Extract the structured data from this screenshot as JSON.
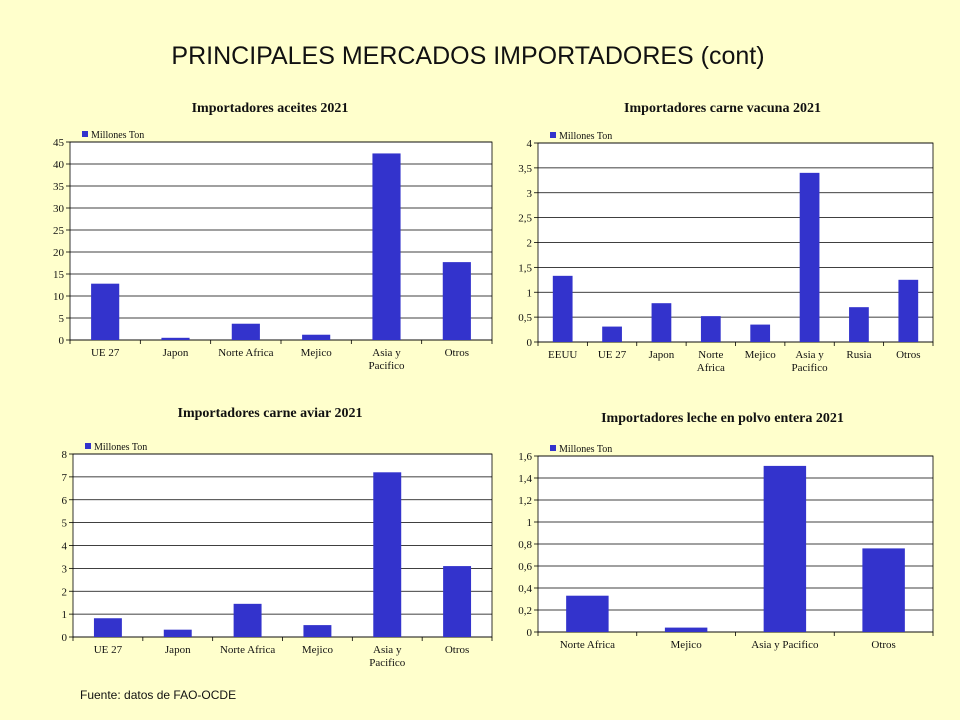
{
  "page": {
    "title": "PRINCIPALES MERCADOS IMPORTADORES (cont)",
    "source": "Fuente: datos de  FAO-OCDE"
  },
  "colors": {
    "bar": "#3333cc",
    "background": "#ffffcc",
    "plot": "#ffffff"
  },
  "chart_data": [
    {
      "type": "bar",
      "title": "Importadores aceites 2021",
      "categories": [
        [
          "UE 27"
        ],
        [
          "Japon"
        ],
        [
          "Norte Africa"
        ],
        [
          "Mejico"
        ],
        [
          "Asia y",
          "Pacifico"
        ],
        [
          "Otros"
        ]
      ],
      "series": [
        {
          "name": "Millones Ton",
          "values": [
            12.8,
            0.5,
            3.7,
            1.2,
            42.4,
            17.7
          ]
        }
      ],
      "ylim": [
        0,
        45
      ],
      "yticks": [
        0,
        5,
        10,
        15,
        20,
        25,
        30,
        35,
        40,
        45
      ],
      "ytick_labels": [
        "0",
        "5",
        "10",
        "15",
        "20",
        "25",
        "30",
        "35",
        "40",
        "45"
      ],
      "grid": true,
      "legend": "top-left"
    },
    {
      "type": "bar",
      "title": "Importadores carne vacuna 2021",
      "categories": [
        [
          "EEUU"
        ],
        [
          "UE 27"
        ],
        [
          "Japon"
        ],
        [
          "Norte",
          "Africa"
        ],
        [
          "Mejico"
        ],
        [
          "Asia y",
          "Pacifico"
        ],
        [
          "Rusia"
        ],
        [
          "Otros"
        ]
      ],
      "series": [
        {
          "name": "Millones Ton",
          "values": [
            1.33,
            0.31,
            0.78,
            0.52,
            0.35,
            3.4,
            0.7,
            1.25
          ]
        }
      ],
      "ylim": [
        0,
        4
      ],
      "yticks": [
        0,
        0.5,
        1,
        1.5,
        2,
        2.5,
        3,
        3.5,
        4
      ],
      "ytick_labels": [
        "0",
        "0,5",
        "1",
        "1,5",
        "2",
        "2,5",
        "3",
        "3,5",
        "4"
      ],
      "grid": true,
      "legend": "top-left"
    },
    {
      "type": "bar",
      "title": "Importadores carne aviar 2021",
      "categories": [
        [
          "UE 27"
        ],
        [
          "Japon"
        ],
        [
          "Norte Africa"
        ],
        [
          "Mejico"
        ],
        [
          "Asia y",
          "Pacifico"
        ],
        [
          "Otros"
        ]
      ],
      "series": [
        {
          "name": "Millones Ton",
          "values": [
            0.82,
            0.32,
            1.45,
            0.52,
            7.2,
            3.1
          ]
        }
      ],
      "ylim": [
        0,
        8
      ],
      "yticks": [
        0,
        1,
        2,
        3,
        4,
        5,
        6,
        7,
        8
      ],
      "ytick_labels": [
        "0",
        "1",
        "2",
        "3",
        "4",
        "5",
        "6",
        "7",
        "8"
      ],
      "grid": true,
      "legend": "top-left"
    },
    {
      "type": "bar",
      "title": "Importadores leche en polvo entera 2021",
      "categories": [
        [
          "Norte Africa"
        ],
        [
          "Mejico"
        ],
        [
          "Asia y Pacifico"
        ],
        [
          "Otros"
        ]
      ],
      "series": [
        {
          "name": "Millones Ton",
          "values": [
            0.33,
            0.04,
            1.51,
            0.76
          ]
        }
      ],
      "ylim": [
        0,
        1.6
      ],
      "yticks": [
        0,
        0.2,
        0.4,
        0.6,
        0.8,
        1,
        1.2,
        1.4,
        1.6
      ],
      "ytick_labels": [
        "0",
        "0,2",
        "0,4",
        "0,6",
        "0,8",
        "1",
        "1,2",
        "1,4",
        "1,6"
      ],
      "grid": true,
      "legend": "top-left"
    }
  ]
}
